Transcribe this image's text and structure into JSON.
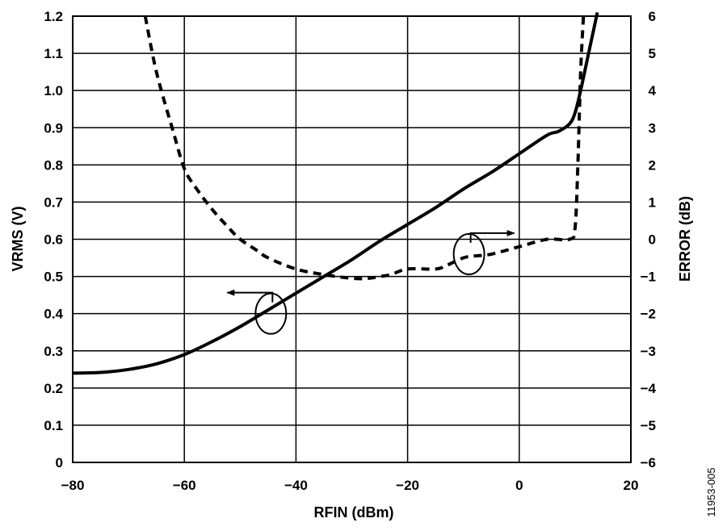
{
  "chart_data": {
    "type": "line",
    "xlabel": "RFIN (dBm)",
    "ylabel": "VRMS (V)",
    "y2label": "ERROR (dB)",
    "figure_id": "11953-005",
    "xlim": [
      -80,
      20
    ],
    "ylim": [
      0,
      1.2
    ],
    "y2lim": [
      -6,
      6
    ],
    "grid": true,
    "x_ticks": [
      -80,
      -60,
      -40,
      -20,
      0,
      20
    ],
    "x_tick_labels": [
      "−80",
      "−60",
      "−40",
      "−20",
      "0",
      "20"
    ],
    "y_ticks": [
      0,
      0.1,
      0.2,
      0.3,
      0.4,
      0.5,
      0.6,
      0.7,
      0.8,
      0.9,
      1.0,
      1.1,
      1.2
    ],
    "y_tick_labels": [
      "0",
      "0.1",
      "0.2",
      "0.3",
      "0.4",
      "0.5",
      "0.6",
      "0.7",
      "0.8",
      "0.9",
      "1.0",
      "1.1",
      "1.2"
    ],
    "y2_ticks": [
      -6,
      -5,
      -4,
      -3,
      -2,
      -1,
      0,
      1,
      2,
      3,
      4,
      5,
      6
    ],
    "y2_tick_labels": [
      "−6",
      "−5",
      "−4",
      "−3",
      "−2",
      "−1",
      "0",
      "1",
      "2",
      "3",
      "4",
      "5",
      "6"
    ],
    "series": [
      {
        "axis": "left",
        "style": "solid",
        "color": "#000000",
        "x": [
          -80,
          -75,
          -70,
          -65,
          -60,
          -55,
          -50,
          -45,
          -40,
          -35,
          -30,
          -25,
          -20,
          -15,
          -10,
          -5,
          0,
          5,
          7,
          9,
          10,
          11,
          12,
          13,
          14
        ],
        "y": [
          0.24,
          0.242,
          0.25,
          0.265,
          0.29,
          0.325,
          0.365,
          0.41,
          0.455,
          0.5,
          0.545,
          0.595,
          0.64,
          0.685,
          0.735,
          0.78,
          0.83,
          0.88,
          0.89,
          0.91,
          0.94,
          1.0,
          1.07,
          1.14,
          1.21
        ]
      },
      {
        "axis": "right",
        "style": "dashed",
        "color": "#000000",
        "x": [
          -67,
          -65,
          -62,
          -60,
          -58,
          -55,
          -52,
          -50,
          -47,
          -45,
          -40,
          -35,
          -30,
          -27,
          -25,
          -23,
          -20,
          -15,
          -13,
          -10,
          -8,
          -5,
          0,
          5,
          9,
          10,
          10.5,
          11,
          11.5
        ],
        "y": [
          6.0,
          4.5,
          2.9,
          1.9,
          1.4,
          0.8,
          0.3,
          0.0,
          -0.3,
          -0.5,
          -0.8,
          -0.95,
          -1.05,
          -1.05,
          -1.0,
          -0.95,
          -0.8,
          -0.8,
          -0.7,
          -0.5,
          -0.45,
          -0.4,
          -0.2,
          0.0,
          0.0,
          0.3,
          2.0,
          4.5,
          6.0
        ]
      }
    ],
    "annotations": [
      {
        "type": "series-marker",
        "points_to": "left-axis",
        "at": [
          -44.5,
          0.4
        ]
      },
      {
        "type": "series-marker",
        "points_to": "right-axis",
        "at": [
          -9,
          0.56
        ]
      }
    ]
  }
}
